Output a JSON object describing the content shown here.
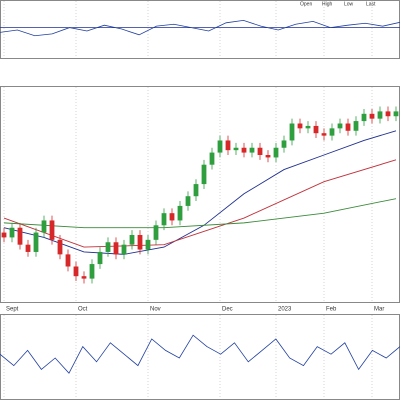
{
  "chart_data": [
    {
      "type": "line",
      "annotations": [
        "Open",
        "High",
        "Low",
        "Last"
      ],
      "color": "#1f3f9f",
      "values": [
        45,
        50,
        38,
        42,
        55,
        48,
        60,
        52,
        40,
        58,
        62,
        55,
        48,
        65,
        70,
        58,
        50,
        62,
        68,
        55,
        60,
        64,
        58,
        66
      ],
      "ylim": [
        0,
        100
      ],
      "hline": 55
    },
    {
      "type": "candlestick",
      "up_color": "#2e9e3e",
      "down_color": "#d62828",
      "xticks": [
        {
          "value": 0,
          "label": "Sept"
        },
        {
          "value": 9,
          "label": "Oct"
        },
        {
          "value": 18,
          "label": "Nov"
        },
        {
          "value": 27,
          "label": "Dec"
        },
        {
          "value": 34,
          "label": "2023"
        },
        {
          "value": 40,
          "label": "Feb"
        },
        {
          "value": 46,
          "label": "Mar"
        }
      ],
      "open": [
        22,
        20,
        24,
        17,
        14,
        22,
        27,
        19,
        13,
        8,
        4,
        3,
        9,
        14,
        18,
        13,
        17,
        21,
        15,
        19,
        25,
        30,
        27,
        33,
        37,
        42,
        50,
        55,
        60,
        56,
        57,
        55,
        57,
        54,
        53,
        57,
        60,
        67,
        65,
        66,
        63,
        62,
        65,
        67,
        64,
        68,
        71,
        69,
        72,
        70
      ],
      "close": [
        20,
        24,
        17,
        14,
        22,
        27,
        19,
        13,
        8,
        4,
        3,
        9,
        14,
        18,
        13,
        17,
        21,
        15,
        19,
        25,
        30,
        27,
        33,
        37,
        42,
        50,
        55,
        60,
        56,
        57,
        55,
        57,
        54,
        53,
        57,
        60,
        67,
        65,
        66,
        63,
        62,
        65,
        67,
        64,
        68,
        71,
        69,
        72,
        70,
        72
      ],
      "high": [
        24,
        26,
        26,
        19,
        24,
        29,
        29,
        21,
        15,
        10,
        6,
        11,
        16,
        20,
        20,
        19,
        23,
        23,
        21,
        27,
        32,
        32,
        35,
        39,
        44,
        52,
        57,
        62,
        62,
        59,
        59,
        59,
        59,
        56,
        59,
        62,
        69,
        69,
        68,
        68,
        65,
        67,
        69,
        69,
        70,
        73,
        73,
        74,
        74,
        74
      ],
      "low": [
        18,
        18,
        15,
        12,
        12,
        20,
        17,
        11,
        6,
        2,
        1,
        1,
        7,
        12,
        11,
        11,
        15,
        13,
        13,
        17,
        23,
        25,
        25,
        31,
        35,
        40,
        48,
        53,
        54,
        54,
        53,
        53,
        52,
        51,
        51,
        55,
        58,
        63,
        63,
        61,
        60,
        60,
        63,
        62,
        62,
        66,
        67,
        67,
        68,
        68
      ],
      "overlays": [
        {
          "color": "#1f2f8f",
          "x": [
            0,
            5,
            10,
            15,
            20,
            25,
            30,
            35,
            40,
            45,
            49
          ],
          "values": [
            24,
            20,
            14,
            13,
            16,
            25,
            38,
            48,
            54,
            60,
            64
          ]
        },
        {
          "color": "#c0303a",
          "x": [
            0,
            10,
            20,
            30,
            40,
            49
          ],
          "values": [
            28,
            16,
            17,
            28,
            43,
            52
          ]
        },
        {
          "color": "#3a8a3a",
          "x": [
            0,
            10,
            20,
            30,
            40,
            49
          ],
          "values": [
            26,
            24,
            24,
            26,
            30,
            36
          ]
        }
      ],
      "ylim": [
        -5,
        80
      ]
    },
    {
      "type": "line",
      "color": "#1f3f9f",
      "values": [
        55,
        40,
        60,
        35,
        50,
        30,
        65,
        45,
        70,
        55,
        40,
        75,
        60,
        50,
        80,
        65,
        55,
        70,
        45,
        60,
        75,
        50,
        40,
        65,
        55,
        70,
        35,
        60,
        50,
        65
      ],
      "ylim": [
        0,
        100
      ]
    }
  ]
}
